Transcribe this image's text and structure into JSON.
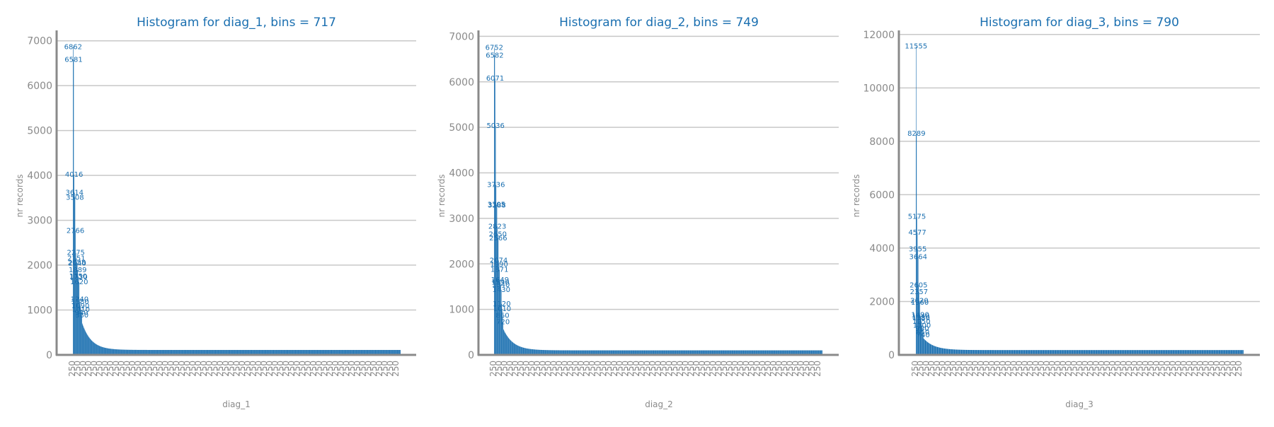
{
  "chart_data": [
    {
      "type": "bar",
      "title": "Histogram for diag_1, bins = 717",
      "xlabel": "diag_1",
      "ylabel": "nr records",
      "ylim": [
        0,
        7200
      ],
      "yticks": [
        0,
        1000,
        2000,
        3000,
        4000,
        5000,
        6000,
        7000
      ],
      "grid": true,
      "bins": 717,
      "color": "#1a6fb0",
      "labeled_values": [
        6862,
        6581,
        4016,
        3614,
        3508,
        2766,
        2275,
        2151,
        2058,
        2040,
        1889,
        1750,
        1730,
        1620,
        1240,
        1180,
        1090,
        1010,
        940,
        880
      ],
      "tail": {
        "start": 700,
        "end": 110,
        "decay": 0.05
      },
      "x_tick_text": "250"
    },
    {
      "type": "bar",
      "title": "Histogram for diag_2, bins = 749",
      "xlabel": "diag_2",
      "ylabel": "nr records",
      "ylim": [
        0,
        7100
      ],
      "yticks": [
        0,
        1000,
        2000,
        3000,
        4000,
        5000,
        6000,
        7000
      ],
      "grid": true,
      "bins": 749,
      "color": "#1a6fb0",
      "labeled_values": [
        6752,
        6582,
        6071,
        5036,
        3736,
        3305,
        3288,
        2823,
        2650,
        2566,
        2074,
        1990,
        1871,
        1649,
        1590,
        1540,
        1430,
        1120,
        1010,
        860,
        720
      ],
      "tail": {
        "start": 560,
        "end": 100,
        "decay": 0.045
      },
      "x_tick_text": "250"
    },
    {
      "type": "bar",
      "title": "Histogram for diag_3, bins = 790",
      "xlabel": "diag_3",
      "ylabel": "nr records",
      "ylim": [
        0,
        12100
      ],
      "yticks": [
        0,
        2000,
        4000,
        6000,
        8000,
        10000,
        12000
      ],
      "grid": true,
      "bins": 790,
      "color": "#1a6fb0",
      "labeled_values": [
        11555,
        8289,
        5175,
        4577,
        3955,
        3664,
        2605,
        2357,
        2020,
        1960,
        1490,
        1440,
        1380,
        1250,
        1100,
        980,
        850,
        740
      ],
      "tail": {
        "start": 620,
        "end": 180,
        "decay": 0.04
      },
      "x_tick_text": "250"
    }
  ]
}
